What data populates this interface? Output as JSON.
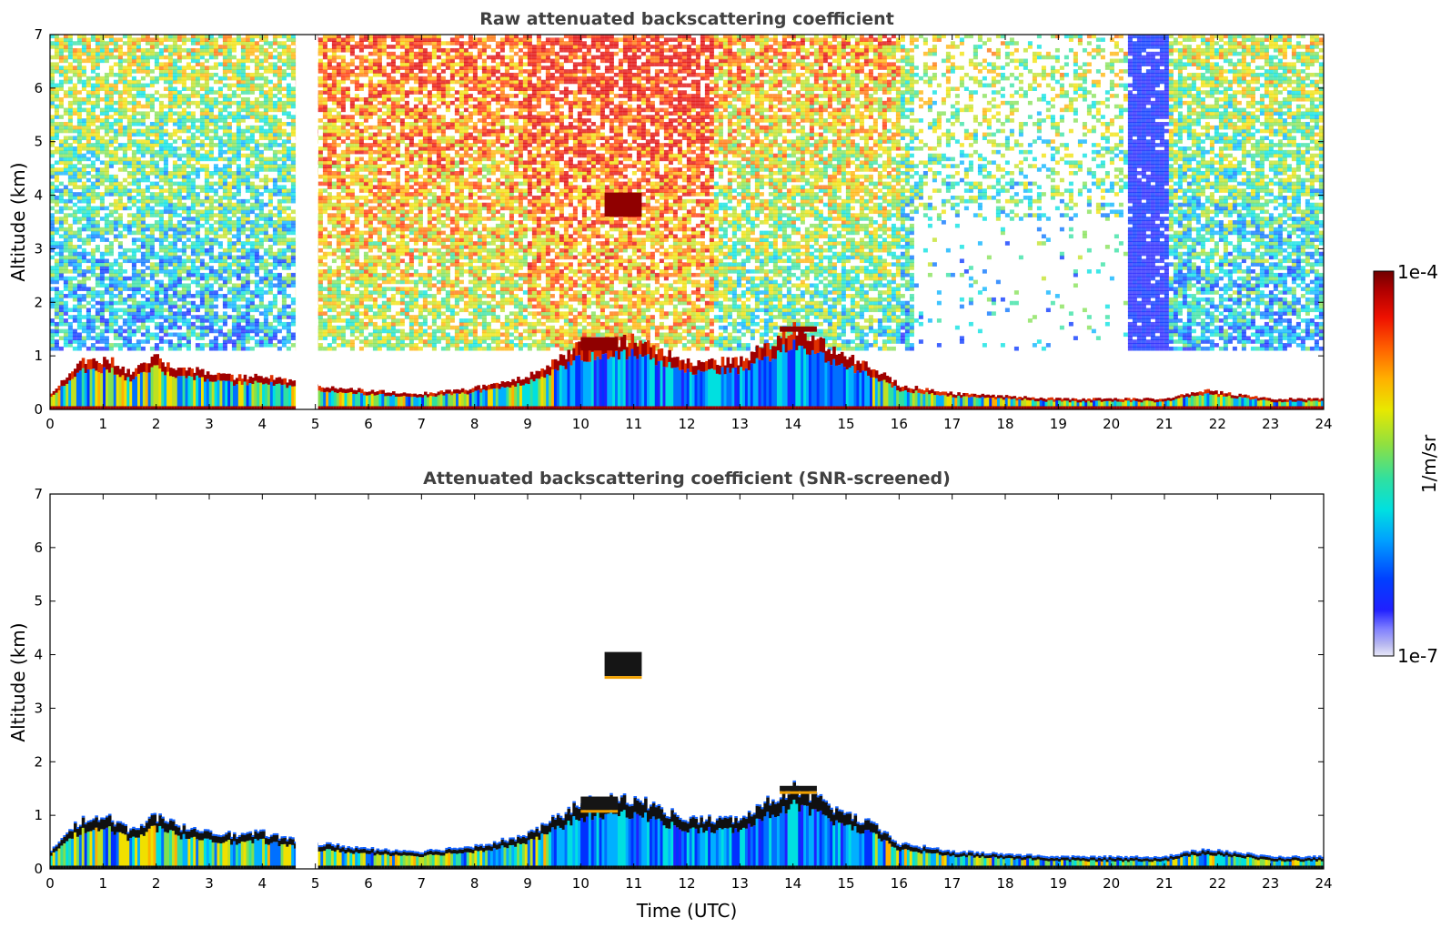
{
  "chart_data": [
    {
      "type": "heatmap",
      "title": "Raw attenuated backscattering coefficient",
      "xlabel": "",
      "ylabel": "Altitude (km)",
      "xlim": [
        0,
        24
      ],
      "ylim": [
        0,
        7
      ],
      "xticks": [
        "0",
        "1",
        "2",
        "3",
        "4",
        "5",
        "6",
        "7",
        "8",
        "9",
        "10",
        "11",
        "12",
        "13",
        "14",
        "15",
        "16",
        "17",
        "18",
        "19",
        "20",
        "21",
        "22",
        "23",
        "24"
      ],
      "yticks": [
        "0",
        "1",
        "2",
        "3",
        "4",
        "5",
        "6",
        "7"
      ],
      "data_gap": [
        4.63,
        5.05
      ],
      "boundary_layer_top_km": [
        [
          0,
          0.3
        ],
        [
          0.6,
          0.9
        ],
        [
          1.1,
          0.95
        ],
        [
          1.5,
          0.7
        ],
        [
          2,
          0.95
        ],
        [
          2.5,
          0.75
        ],
        [
          3,
          0.7
        ],
        [
          3.5,
          0.6
        ],
        [
          4,
          0.65
        ],
        [
          4.6,
          0.5
        ],
        [
          5,
          0.45
        ],
        [
          6,
          0.35
        ],
        [
          7,
          0.3
        ],
        [
          8,
          0.4
        ],
        [
          9,
          0.6
        ],
        [
          10,
          1.2
        ],
        [
          11,
          1.3
        ],
        [
          12,
          0.9
        ],
        [
          13,
          0.9
        ],
        [
          14,
          1.5
        ],
        [
          15,
          1.0
        ],
        [
          15.5,
          0.8
        ],
        [
          16,
          0.45
        ],
        [
          17,
          0.3
        ],
        [
          18,
          0.25
        ],
        [
          19,
          0.2
        ],
        [
          20,
          0.2
        ],
        [
          21,
          0.2
        ],
        [
          21.8,
          0.35
        ],
        [
          23,
          0.2
        ],
        [
          24,
          0.2
        ]
      ],
      "cloud_features": [
        {
          "time": [
            10.45,
            11.15
          ],
          "altitude_km": [
            3.6,
            4.05
          ]
        },
        {
          "time": [
            13.75,
            14.45
          ],
          "altitude_km": [
            1.45,
            1.55
          ]
        },
        {
          "time": [
            10.0,
            10.7
          ],
          "altitude_km": [
            1.1,
            1.35
          ]
        }
      ]
    },
    {
      "type": "heatmap",
      "title": "Attenuated backscattering coefficient (SNR-screened)",
      "xlabel": "Time (UTC)",
      "ylabel": "Altitude (km)",
      "xlim": [
        0,
        24
      ],
      "ylim": [
        0,
        7
      ],
      "xticks": [
        "0",
        "1",
        "2",
        "3",
        "4",
        "5",
        "6",
        "7",
        "8",
        "9",
        "10",
        "11",
        "12",
        "13",
        "14",
        "15",
        "16",
        "17",
        "18",
        "19",
        "20",
        "21",
        "22",
        "23",
        "24"
      ],
      "yticks": [
        "0",
        "1",
        "2",
        "3",
        "4",
        "5",
        "6",
        "7"
      ],
      "data_gap": [
        4.63,
        5.05
      ]
    }
  ],
  "colorbar": {
    "max_label": "1e-4",
    "min_label": "1e-7",
    "unit_label": "1/m/sr",
    "colors": [
      "#e8e8f8",
      "#b8b8f0",
      "#8080ff",
      "#2020ff",
      "#0030ff",
      "#0070ff",
      "#00b0ff",
      "#00e0e0",
      "#30e0a0",
      "#80e050",
      "#c0e020",
      "#f0e000",
      "#ffb000",
      "#ff7000",
      "#ff3000",
      "#e00000",
      "#a00000",
      "#700000"
    ]
  }
}
